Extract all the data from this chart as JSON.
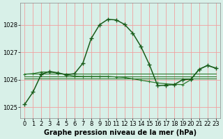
{
  "title": "Graphe pression niveau de la mer (hPa)",
  "bg_color": "#d8f0e8",
  "grid_color": "#f0a0a0",
  "line_color_main": "#1a5c1a",
  "line_color_secondary": "#2d7a2d",
  "x_ticks": [
    0,
    1,
    2,
    3,
    4,
    5,
    6,
    7,
    8,
    9,
    10,
    11,
    12,
    13,
    14,
    15,
    16,
    17,
    18,
    19,
    20,
    21,
    22,
    23
  ],
  "ylim": [
    1024.6,
    1028.8
  ],
  "yticks": [
    1025,
    1026,
    1027,
    1028
  ],
  "series_main": [
    1025.1,
    1025.55,
    1026.2,
    1026.3,
    1026.25,
    1026.18,
    1026.22,
    1026.6,
    1027.5,
    1028.0,
    1028.2,
    1028.18,
    1028.02,
    1027.7,
    1027.2,
    1026.55,
    1025.78,
    1025.8,
    1025.82,
    1026.0,
    1026.02,
    1026.38,
    1026.52,
    1026.42
  ],
  "series_flat1": [
    1026.22,
    1026.22,
    1026.22,
    1026.22,
    1026.22,
    1026.22,
    1026.22,
    1026.22,
    1026.22,
    1026.22,
    1026.22,
    1026.22,
    1026.22,
    1026.22,
    1026.22,
    1026.22,
    1026.22,
    1026.22,
    1026.22,
    1026.22,
    1026.22,
    1026.22,
    1026.22,
    1026.22
  ],
  "series_flat2": [
    1026.12,
    1026.12,
    1026.12,
    1026.12,
    1026.12,
    1026.12,
    1026.12,
    1026.12,
    1026.12,
    1026.12,
    1026.12,
    1026.12,
    1026.12,
    1026.12,
    1026.12,
    1026.12,
    1026.12,
    1026.12,
    1026.12,
    1026.12,
    1026.12,
    1026.12,
    1026.12,
    1026.12
  ],
  "series_flat3": [
    1026.05,
    1026.05,
    1026.05,
    1026.05,
    1026.05,
    1026.05,
    1026.05,
    1026.05,
    1026.05,
    1026.05,
    1026.05,
    1026.05,
    1026.05,
    1026.05,
    1026.05,
    1026.05,
    1026.05,
    1026.05,
    1026.05,
    1026.05,
    1026.05,
    1026.05,
    1026.05,
    1026.05
  ],
  "series_secondary": [
    1026.2,
    1026.22,
    1026.28,
    1026.28,
    1026.24,
    1026.18,
    1026.13,
    1026.12,
    1026.12,
    1026.12,
    1026.12,
    1026.1,
    1026.08,
    1026.03,
    1025.98,
    1025.93,
    1025.88,
    1025.85,
    1025.83,
    1025.82,
    1026.0,
    1026.38,
    1026.52,
    1026.42
  ],
  "title_fontsize": 7,
  "tick_fontsize": 6,
  "ylabel_fontsize": 6
}
